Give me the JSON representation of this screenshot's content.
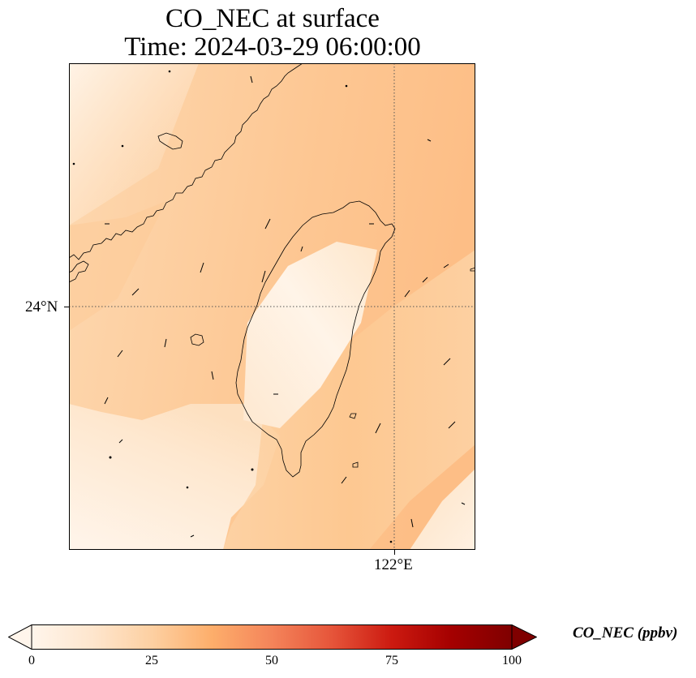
{
  "title": {
    "line1": "CO_NEC at surface",
    "line2": "Time: 2024-03-29 06:00:00"
  },
  "axes": {
    "lat_label": "24°N",
    "lon_label": "122°E",
    "gridline_style": "dotted"
  },
  "colorbar": {
    "label": "CO_NEC (ppbv)",
    "ticks": [
      "0",
      "25",
      "50",
      "75",
      "100"
    ],
    "min": 0,
    "max": 100,
    "extend": "both",
    "colormap": [
      "#fff5eb",
      "#fee6ce",
      "#fdd0a2",
      "#fdae6b",
      "#fd8d3c",
      "#f16913",
      "#d94801",
      "#a63603",
      "#7f2704"
    ],
    "colormap_name": "OrRd"
  },
  "map": {
    "region": "Taiwan and Fujian coast",
    "overlay": "wind vectors",
    "field_range_estimate": [
      3,
      30
    ]
  }
}
